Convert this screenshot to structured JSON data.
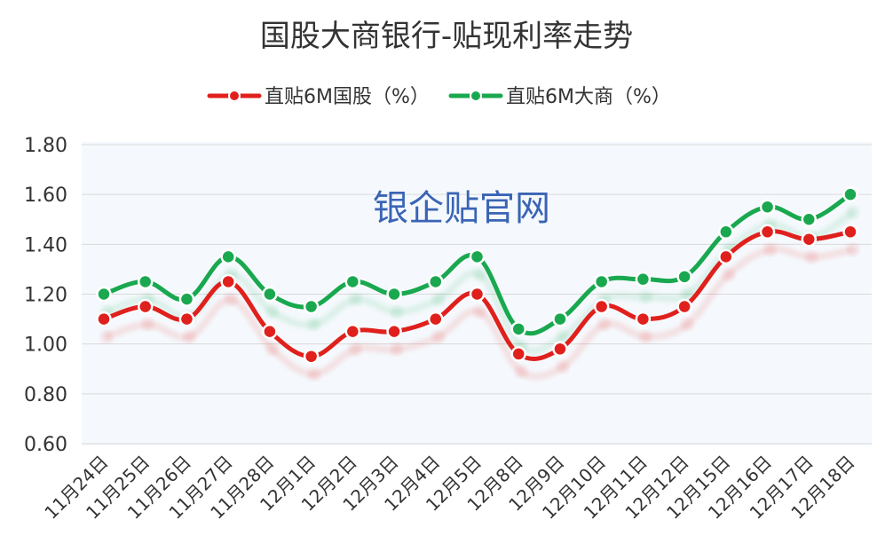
{
  "chart_data": {
    "type": "line",
    "title": "国股大商银行-贴现利率走势",
    "watermark": "银企贴官网",
    "categories": [
      "11月24日",
      "11月25日",
      "11月26日",
      "11月27日",
      "11月28日",
      "12月1日",
      "12月2日",
      "12月3日",
      "12月4日",
      "12月5日",
      "12月8日",
      "12月9日",
      "12月10日",
      "12月11日",
      "12月12日",
      "12月15日",
      "12月16日",
      "12月17日",
      "12月18日"
    ],
    "series": [
      {
        "name": "直贴6M国股（%）",
        "color": "#e0201c",
        "values": [
          1.1,
          1.15,
          1.1,
          1.25,
          1.05,
          0.95,
          1.05,
          1.05,
          1.1,
          1.2,
          0.96,
          0.98,
          1.15,
          1.1,
          1.15,
          1.35,
          1.45,
          1.42,
          1.45
        ]
      },
      {
        "name": "直贴6M大商（%）",
        "color": "#19a84f",
        "values": [
          1.2,
          1.25,
          1.18,
          1.35,
          1.2,
          1.15,
          1.25,
          1.2,
          1.25,
          1.35,
          1.06,
          1.1,
          1.25,
          1.26,
          1.27,
          1.45,
          1.55,
          1.5,
          1.6
        ]
      }
    ],
    "yticks": [
      "1.80",
      "1.60",
      "1.40",
      "1.20",
      "1.00",
      "0.80",
      "0.60"
    ],
    "ylim": [
      0.6,
      1.8
    ],
    "grid": true,
    "legend": "top-center"
  }
}
